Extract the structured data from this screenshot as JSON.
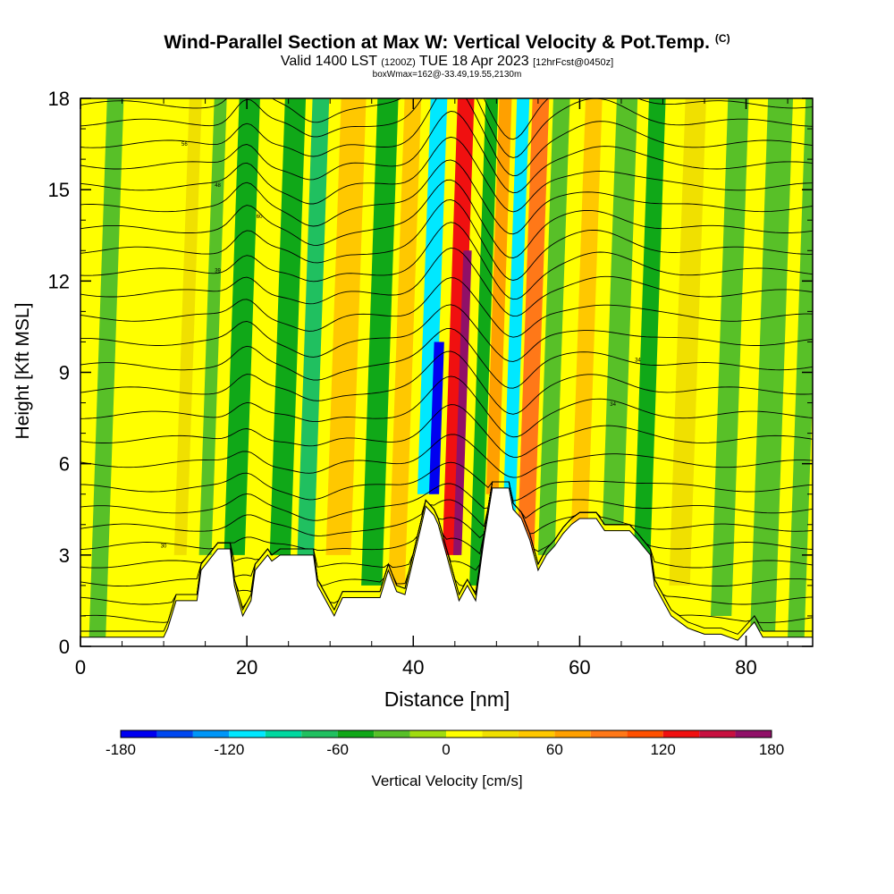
{
  "header": {
    "title": "Wind-Parallel Section at Max W: Vertical Velocity & Pot.Temp.",
    "copyright": "(C)",
    "valid_prefix": "Valid 1400 LST",
    "valid_utc": "(1200Z)",
    "valid_date": "TUE 18 Apr 2023",
    "forecast": "[12hrFcst@0450z]",
    "box_info": "boxWmax=162@-33.49,19.55,2130m"
  },
  "chart_data": {
    "type": "heatmap",
    "title": "Wind-Parallel Section at Max W: Vertical Velocity & Pot.Temp.",
    "xlabel": "Distance [nm]",
    "ylabel": "Height [Kft MSL]",
    "xlim": [
      0,
      88
    ],
    "ylim": [
      0,
      18
    ],
    "x_ticks": [
      0,
      20,
      40,
      60,
      80
    ],
    "y_ticks": [
      0,
      3,
      6,
      9,
      12,
      15,
      18
    ],
    "x_tick_labels": [
      "0",
      "20",
      "40",
      "60",
      "80"
    ],
    "y_tick_labels": [
      "0",
      "3",
      "6",
      "9",
      "12",
      "15",
      "18"
    ],
    "background_velocity": 0,
    "velocity_bands": [
      {
        "x": 2,
        "width": 2,
        "value": -40,
        "top": 18,
        "bottom": 0
      },
      {
        "x": 12,
        "width": 1.5,
        "value": 30,
        "top": 18,
        "bottom": 3
      },
      {
        "x": 15,
        "width": 1.5,
        "value": -40,
        "top": 18,
        "bottom": 3
      },
      {
        "x": 18.5,
        "width": 2.5,
        "value": -60,
        "top": 18,
        "bottom": 3
      },
      {
        "x": 24,
        "width": 2.5,
        "value": -60,
        "top": 18,
        "bottom": 3
      },
      {
        "x": 27,
        "width": 2,
        "value": -80,
        "top": 18,
        "bottom": 2.5
      },
      {
        "x": 31,
        "width": 3,
        "value": 50,
        "top": 18,
        "bottom": 3
      },
      {
        "x": 35,
        "width": 2.5,
        "value": -50,
        "top": 18,
        "bottom": 2
      },
      {
        "x": 38,
        "width": 2,
        "value": 40,
        "top": 18,
        "bottom": 2
      },
      {
        "x": 41.5,
        "width": 2,
        "value": -120,
        "top": 18,
        "bottom": 5
      },
      {
        "x": 42.5,
        "width": 1.2,
        "value": -170,
        "top": 10,
        "bottom": 5
      },
      {
        "x": 44.5,
        "width": 2,
        "value": 120,
        "top": 18,
        "bottom": 3
      },
      {
        "x": 45.3,
        "width": 1,
        "value": 160,
        "top": 13,
        "bottom": 3
      },
      {
        "x": 47.5,
        "width": 1.5,
        "value": -60,
        "top": 18,
        "bottom": 2
      },
      {
        "x": 49.5,
        "width": 1.5,
        "value": 60,
        "top": 18,
        "bottom": 5
      },
      {
        "x": 51.5,
        "width": 1.5,
        "value": -120,
        "top": 18,
        "bottom": 4
      },
      {
        "x": 53.5,
        "width": 2,
        "value": 80,
        "top": 18,
        "bottom": 3
      },
      {
        "x": 56,
        "width": 2,
        "value": -40,
        "top": 18,
        "bottom": 3
      },
      {
        "x": 60,
        "width": 2,
        "value": 40,
        "top": 18,
        "bottom": 4
      },
      {
        "x": 64,
        "width": 2.5,
        "value": -40,
        "top": 18,
        "bottom": 4
      },
      {
        "x": 67.5,
        "width": 2,
        "value": -60,
        "top": 18,
        "bottom": 3
      },
      {
        "x": 72,
        "width": 2.5,
        "value": 30,
        "top": 18,
        "bottom": 2
      },
      {
        "x": 77,
        "width": 2.5,
        "value": -40,
        "top": 18,
        "bottom": 1
      },
      {
        "x": 82,
        "width": 3,
        "value": -30,
        "top": 18,
        "bottom": 0.5
      },
      {
        "x": 86,
        "width": 2,
        "value": -40,
        "top": 18,
        "bottom": 0.3
      }
    ],
    "terrain": {
      "x": [
        0,
        10,
        10.5,
        11.5,
        14,
        14.5,
        16.5,
        18,
        18.5,
        19.5,
        20.5,
        21,
        22.5,
        23,
        24,
        28,
        28.5,
        29.5,
        30.5,
        31.5,
        33,
        36,
        37,
        38,
        39,
        41,
        41.5,
        42.5,
        43,
        44,
        45.5,
        46.5,
        47.5,
        48.5,
        49.5,
        51.5,
        52,
        53,
        54,
        55,
        56,
        57,
        58,
        59,
        60,
        62,
        63,
        66,
        67,
        68.5,
        69,
        70,
        71,
        72,
        73,
        74,
        75,
        77,
        78,
        79,
        80,
        81,
        82,
        84,
        86,
        88
      ],
      "y": [
        0.3,
        0.3,
        0.6,
        1.5,
        1.5,
        2.5,
        3.2,
        3.2,
        2.0,
        1.0,
        1.5,
        2.5,
        3.0,
        2.8,
        3.0,
        3.0,
        2.0,
        1.5,
        1.0,
        1.6,
        1.6,
        1.6,
        2.5,
        1.8,
        1.7,
        4.0,
        4.6,
        4.3,
        4.0,
        3.0,
        1.5,
        2.0,
        1.5,
        3.5,
        5.2,
        5.2,
        4.5,
        4.2,
        3.5,
        2.5,
        3.0,
        3.3,
        3.7,
        4.0,
        4.2,
        4.2,
        3.8,
        3.8,
        3.5,
        3.0,
        2.0,
        1.5,
        1.0,
        0.8,
        0.6,
        0.5,
        0.4,
        0.4,
        0.3,
        0.2,
        0.5,
        0.8,
        0.3,
        0.3,
        0.3,
        0.3
      ]
    },
    "isentropes": [
      {
        "base_height": 0.3,
        "label": "",
        "label_x": null
      },
      {
        "base_height": 0.9,
        "label": "",
        "label_x": null
      },
      {
        "base_height": 1.5,
        "label": "",
        "label_x": null
      },
      {
        "base_height": 2.1,
        "label": "",
        "label_x": null
      },
      {
        "base_height": 2.7,
        "label": "",
        "label_x": null
      },
      {
        "base_height": 3.3,
        "label": "30",
        "label_x": 10
      },
      {
        "base_height": 3.9,
        "label": "",
        "label_x": null
      },
      {
        "base_height": 4.5,
        "label": "",
        "label_x": null
      },
      {
        "base_height": 5.2,
        "label": "",
        "label_x": null
      },
      {
        "base_height": 6.0,
        "label": "",
        "label_x": null
      },
      {
        "base_height": 6.8,
        "label": "",
        "label_x": null
      },
      {
        "base_height": 7.6,
        "label": "34",
        "label_x": 64
      },
      {
        "base_height": 8.4,
        "label": "",
        "label_x": null
      },
      {
        "base_height": 9.2,
        "label": "34",
        "label_x": 67
      },
      {
        "base_height": 10.0,
        "label": "",
        "label_x": null
      },
      {
        "base_height": 10.8,
        "label": "",
        "label_x": null
      },
      {
        "base_height": 11.6,
        "label": "",
        "label_x": null
      },
      {
        "base_height": 12.3,
        "label": "39",
        "label_x": 16.5
      },
      {
        "base_height": 13.0,
        "label": "",
        "label_x": null
      },
      {
        "base_height": 13.7,
        "label": "60",
        "label_x": 21.5
      },
      {
        "base_height": 14.4,
        "label": "",
        "label_x": null
      },
      {
        "base_height": 15.1,
        "label": "48",
        "label_x": 16.5
      },
      {
        "base_height": 15.8,
        "label": "",
        "label_x": null
      },
      {
        "base_height": 16.5,
        "label": "56",
        "label_x": 12.5
      },
      {
        "base_height": 17.2,
        "label": "",
        "label_x": null
      },
      {
        "base_height": 17.8,
        "label": "48",
        "label_x": 19
      }
    ],
    "colorbar": {
      "label": "Vertical Velocity [cm/s]",
      "min": -180,
      "max": 180,
      "step": 20,
      "tick_values": [
        -180,
        -120,
        -60,
        0,
        60,
        120,
        180
      ],
      "tick_labels": [
        "-180",
        "-120",
        "-60",
        "0",
        "60",
        "120",
        "180"
      ],
      "colors": [
        "#0000f0",
        "#0048f0",
        "#0096f8",
        "#00e8ff",
        "#00d8a0",
        "#20c060",
        "#10a818",
        "#58c028",
        "#a0dc10",
        "#ffff00",
        "#f0e000",
        "#ffc800",
        "#ffa000",
        "#ff7818",
        "#ff5000",
        "#f01010",
        "#c81040",
        "#901068"
      ]
    }
  }
}
